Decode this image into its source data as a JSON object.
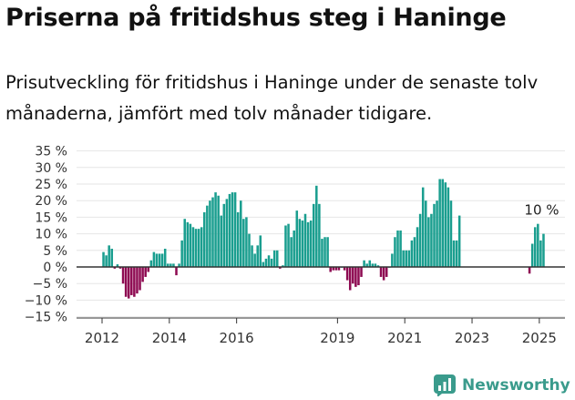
{
  "header": {
    "title": "Priserna på fritidshus steg i Haninge",
    "subtitle": "Prisutveckling för fritidshus i Haninge under de senaste tolv månaderna, jämfört med tolv månader tidigare."
  },
  "brand": {
    "name": "Newsworthy",
    "color": "#3a9b8c"
  },
  "chart_data": {
    "type": "bar",
    "title": "",
    "xlabel": "",
    "ylabel": "",
    "ylim": [
      -15,
      35
    ],
    "yticks": [
      -15,
      -10,
      -5,
      0,
      5,
      10,
      15,
      20,
      25,
      30,
      35
    ],
    "ytick_labels": [
      "−15 %",
      "−10 %",
      "−5 %",
      "0 %",
      "5 %",
      "10 %",
      "15 %",
      "20 %",
      "25 %",
      "30 %",
      "35 %"
    ],
    "xticks": [
      2012,
      2014,
      2016,
      2019,
      2021,
      2023,
      2025
    ],
    "grid": "horizontal",
    "colors": {
      "positive": "#1a9e8f",
      "negative": "#8e0b52",
      "axis": "#333333",
      "grid": "#e6e6e6"
    },
    "annotation": {
      "text": "10 %",
      "category": "2025-02"
    },
    "categories": [
      "2012-01",
      "2012-02",
      "2012-03",
      "2012-04",
      "2012-05",
      "2012-06",
      "2012-07",
      "2012-08",
      "2012-09",
      "2012-10",
      "2012-11",
      "2012-12",
      "2013-01",
      "2013-02",
      "2013-03",
      "2013-04",
      "2013-05",
      "2013-06",
      "2013-07",
      "2013-08",
      "2013-09",
      "2013-10",
      "2013-11",
      "2013-12",
      "2014-01",
      "2014-02",
      "2014-03",
      "2014-04",
      "2014-05",
      "2014-06",
      "2014-07",
      "2014-08",
      "2014-09",
      "2014-10",
      "2014-11",
      "2014-12",
      "2015-01",
      "2015-02",
      "2015-03",
      "2015-04",
      "2015-05",
      "2015-06",
      "2015-07",
      "2015-08",
      "2015-09",
      "2015-10",
      "2015-11",
      "2015-12",
      "2016-01",
      "2016-02",
      "2016-03",
      "2016-04",
      "2016-05",
      "2016-06",
      "2016-07",
      "2016-08",
      "2016-09",
      "2016-10",
      "2016-11",
      "2016-12",
      "2017-01",
      "2017-02",
      "2017-03",
      "2017-04",
      "2017-05",
      "2017-06",
      "2017-07",
      "2017-08",
      "2017-09",
      "2017-10",
      "2017-11",
      "2017-12",
      "2018-01",
      "2018-02",
      "2018-03",
      "2018-04",
      "2018-05",
      "2018-06",
      "2018-07",
      "2018-08",
      "2018-09",
      "2018-10",
      "2018-11",
      "2018-12",
      "2019-01",
      "2019-02",
      "2019-03",
      "2019-04",
      "2019-05",
      "2019-06",
      "2019-07",
      "2019-08",
      "2019-09",
      "2019-10",
      "2019-11",
      "2019-12",
      "2020-01",
      "2020-02",
      "2020-03",
      "2020-04",
      "2020-05",
      "2020-06",
      "2020-07",
      "2020-08",
      "2020-09",
      "2020-10",
      "2020-11",
      "2020-12",
      "2021-01",
      "2021-02",
      "2021-03",
      "2021-04",
      "2021-05",
      "2021-06",
      "2021-07",
      "2021-08",
      "2021-09",
      "2021-10",
      "2021-11",
      "2021-12",
      "2022-01",
      "2022-02",
      "2022-03",
      "2022-04",
      "2022-05",
      "2022-06",
      "2022-07",
      "2022-08",
      "2022-09",
      "2022-10",
      "2022-11",
      "2022-12",
      "2023-01",
      "2023-02",
      "2023-03",
      "2023-04",
      "2023-05",
      "2023-06",
      "2023-07",
      "2023-08",
      "2023-09",
      "2023-10",
      "2023-11",
      "2023-12",
      "2024-01",
      "2024-02",
      "2024-03",
      "2024-04",
      "2024-05",
      "2024-06",
      "2024-07",
      "2024-08",
      "2024-09",
      "2024-10",
      "2024-11",
      "2024-12",
      "2025-01",
      "2025-02"
    ],
    "series": [
      {
        "values": [
          4.5,
          3.5,
          6.5,
          5.5,
          -0.5,
          0.8,
          -0.5,
          -5,
          -9,
          -9.5,
          -8.5,
          -9,
          -8,
          -7,
          -4.5,
          -3,
          -1.5,
          2,
          4.5,
          4,
          4,
          4,
          5.5,
          1,
          1,
          1,
          -2.5,
          1,
          8,
          14.5,
          13.5,
          13,
          12,
          11.5,
          11.5,
          12,
          16.5,
          18.5,
          20,
          21,
          22.5,
          21.5,
          15.5,
          19,
          20.5,
          22,
          22.5,
          22.5,
          16.5,
          20,
          14.5,
          15,
          10,
          6.5,
          4,
          6.5,
          9.5,
          1.5,
          2.5,
          3.5,
          2.5,
          5,
          5,
          -0.5,
          0.5,
          12.5,
          13,
          9,
          11,
          17,
          14.5,
          14,
          16,
          13.5,
          14,
          19,
          24.5,
          19,
          8.5,
          9,
          9,
          -1.5,
          -1,
          -1,
          -1,
          0,
          -1,
          -4,
          -7,
          -5,
          -6,
          -5.5,
          -3,
          2,
          1,
          2,
          1,
          1,
          0.5,
          -3,
          -4,
          -3,
          0,
          4,
          9,
          11,
          11,
          5,
          5,
          5,
          8,
          9,
          12,
          16,
          24,
          20,
          15,
          16,
          19,
          20,
          26.5,
          26.5,
          25.5,
          24,
          20,
          8,
          8,
          15.5,
          null,
          null,
          null,
          null,
          null,
          null,
          null,
          null,
          null,
          null,
          null,
          null,
          null,
          null,
          null,
          null,
          null,
          null,
          null,
          null,
          null,
          null,
          null,
          null,
          -2,
          7,
          12,
          13,
          8,
          10
        ]
      }
    ]
  }
}
